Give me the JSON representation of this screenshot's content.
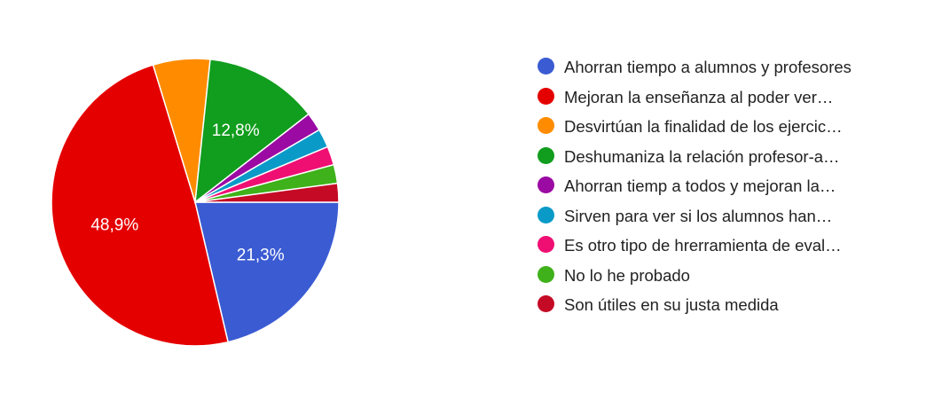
{
  "chart_data": {
    "type": "pie",
    "slices": [
      {
        "label": "Ahorran tiempo a alumnos y profesores",
        "value": 21.3,
        "value_label": "21,3%",
        "color": "#3b5bd3"
      },
      {
        "label": "Mejoran la enseñanza al poder ver…",
        "value": 48.9,
        "value_label": "48,9%",
        "color": "#e50000"
      },
      {
        "label": "Desvirtúan la finalidad de los ejercic…",
        "value": 6.4,
        "value_label": "",
        "color": "#ff8c00"
      },
      {
        "label": "Deshumaniza la relación profesor-a…",
        "value": 12.8,
        "value_label": "12,8%",
        "color": "#119d1d"
      },
      {
        "label": "Ahorran tiemp a todos y mejoran la…",
        "value": 2.1,
        "value_label": "",
        "color": "#9b0aa3"
      },
      {
        "label": "Sirven para ver si los alumnos han…",
        "value": 2.1,
        "value_label": "",
        "color": "#0a9ac8"
      },
      {
        "label": "Es otro tipo de hrerramienta de eval…",
        "value": 2.1,
        "value_label": "",
        "color": "#ef0f73"
      },
      {
        "label": "No lo he probado",
        "value": 2.1,
        "value_label": "",
        "color": "#3fb11a"
      },
      {
        "label": "Son útiles en su justa medida",
        "value": 2.1,
        "value_label": "",
        "color": "#c40a25"
      }
    ],
    "legend_position": "right"
  }
}
